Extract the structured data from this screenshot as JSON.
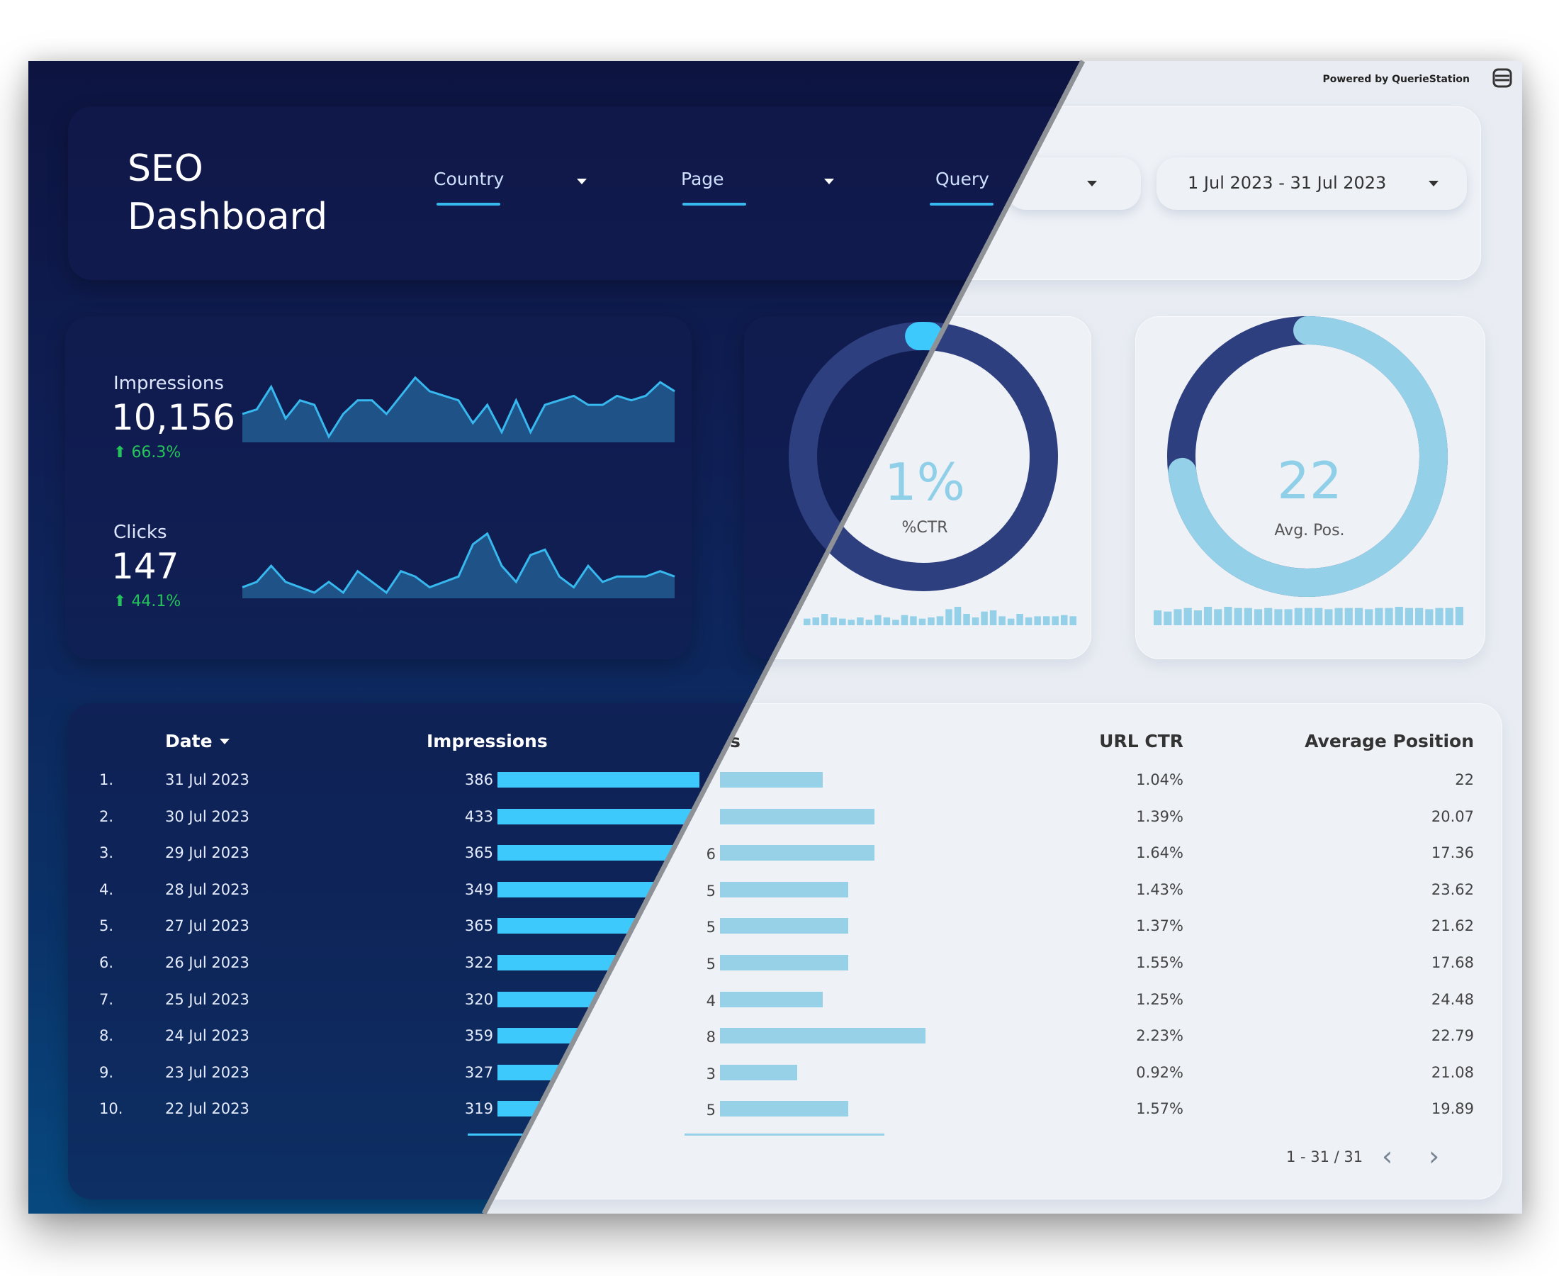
{
  "header": {
    "title_line1": "SEO",
    "title_line2": "Dashboard",
    "powered_by": "Powered by QuerieStation",
    "filters": [
      {
        "label": "Country"
      },
      {
        "label": "Page"
      },
      {
        "label": "Query"
      }
    ],
    "date_range": "1 Jul 2023 - 31 Jul 2023"
  },
  "kpis": [
    {
      "label": "Impressions",
      "value": "10,156",
      "delta": "66.3%"
    },
    {
      "label": "Clicks",
      "value": "147",
      "delta": "44.1%"
    }
  ],
  "gauges": [
    {
      "value": "1%",
      "label": "%CTR",
      "fraction": 0.01
    },
    {
      "value": "22",
      "label": "Avg. Pos.",
      "fraction": 0.73
    }
  ],
  "table": {
    "headers": {
      "date": "Date",
      "impressions": "Impressions",
      "url_ctr": "URL CTR",
      "avg_pos": "Average Position",
      "clicks_partial": "s"
    },
    "rows": [
      {
        "n": "1.",
        "date": "31 Jul 2023",
        "impressions": "386",
        "clicks": "",
        "ctr": "1.04%",
        "pos": "22"
      },
      {
        "n": "2.",
        "date": "30 Jul 2023",
        "impressions": "433",
        "clicks": "",
        "ctr": "1.39%",
        "pos": "20.07"
      },
      {
        "n": "3.",
        "date": "29 Jul 2023",
        "impressions": "365",
        "clicks": "6",
        "ctr": "1.64%",
        "pos": "17.36"
      },
      {
        "n": "4.",
        "date": "28 Jul 2023",
        "impressions": "349",
        "clicks": "5",
        "ctr": "1.43%",
        "pos": "23.62"
      },
      {
        "n": "5.",
        "date": "27 Jul 2023",
        "impressions": "365",
        "clicks": "5",
        "ctr": "1.37%",
        "pos": "21.62"
      },
      {
        "n": "6.",
        "date": "26 Jul 2023",
        "impressions": "322",
        "clicks": "5",
        "ctr": "1.55%",
        "pos": "17.68"
      },
      {
        "n": "7.",
        "date": "25 Jul 2023",
        "impressions": "320",
        "clicks": "4",
        "ctr": "1.25%",
        "pos": "24.48"
      },
      {
        "n": "8.",
        "date": "24 Jul 2023",
        "impressions": "359",
        "clicks": "8",
        "ctr": "2.23%",
        "pos": "22.79"
      },
      {
        "n": "9.",
        "date": "23 Jul 2023",
        "impressions": "327",
        "clicks": "3",
        "ctr": "0.92%",
        "pos": "21.08"
      },
      {
        "n": "10.",
        "date": "22 Jul 2023",
        "impressions": "319",
        "clicks": "5",
        "ctr": "1.57%",
        "pos": "19.89"
      }
    ],
    "pagination": "1 - 31 / 31"
  },
  "colors": {
    "accent": "#37b8ef",
    "bar_dark": "#3ec9fd",
    "bar_light": "#97d1e8",
    "gauge_navy": "#2e3f7f",
    "gauge_light": "#94d1e8",
    "positive": "#25c45a"
  },
  "chart_data": [
    {
      "type": "area",
      "series": [
        {
          "name": "Impressions",
          "values": [
            300,
            310,
            360,
            290,
            330,
            320,
            250,
            300,
            330,
            330,
            300,
            340,
            380,
            350,
            340,
            330,
            280,
            320,
            260,
            330,
            260,
            320,
            330,
            340,
            320,
            320,
            340,
            330,
            340,
            370,
            350
          ]
        }
      ]
    },
    {
      "type": "area",
      "series": [
        {
          "name": "Clicks",
          "values": [
            2,
            3,
            6,
            3,
            2,
            1,
            3,
            1,
            5,
            3,
            1,
            5,
            4,
            2,
            3,
            4,
            10,
            12,
            6,
            3,
            8,
            9,
            4,
            2,
            6,
            3,
            4,
            4,
            4,
            5,
            4
          ]
        }
      ]
    }
  ]
}
